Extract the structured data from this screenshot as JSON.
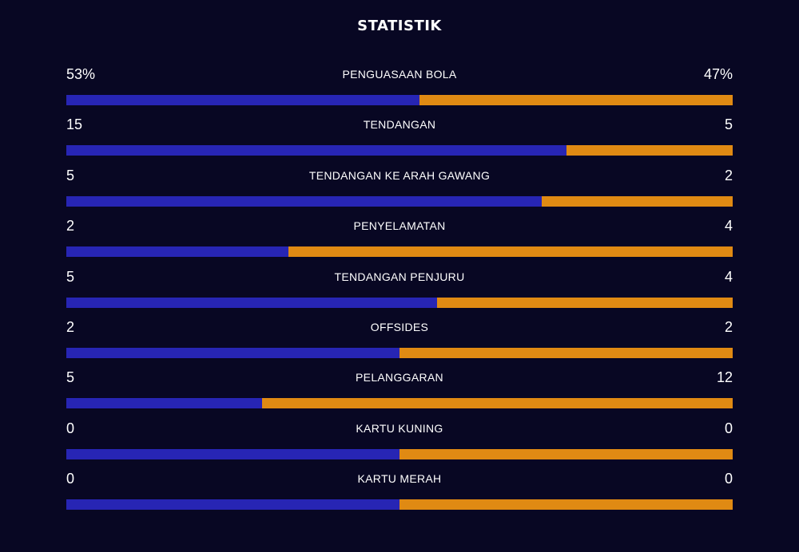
{
  "title": "STATISTIK",
  "colors": {
    "background": "#080723",
    "home": "#2725b4",
    "away": "#e08a13"
  },
  "stats": [
    {
      "label": "PENGUASAAN BOLA",
      "home": "53%",
      "away": "47%",
      "home_share": 0.53
    },
    {
      "label": "TENDANGAN",
      "home": "15",
      "away": "5",
      "home_share": 0.75
    },
    {
      "label": "TENDANGAN KE ARAH GAWANG",
      "home": "5",
      "away": "2",
      "home_share": 0.714
    },
    {
      "label": "PENYELAMATAN",
      "home": "2",
      "away": "4",
      "home_share": 0.333
    },
    {
      "label": "TENDANGAN PENJURU",
      "home": "5",
      "away": "4",
      "home_share": 0.556
    },
    {
      "label": "OFFSIDES",
      "home": "2",
      "away": "2",
      "home_share": 0.5
    },
    {
      "label": "PELANGGARAN",
      "home": "5",
      "away": "12",
      "home_share": 0.294
    },
    {
      "label": "KARTU KUNING",
      "home": "0",
      "away": "0",
      "home_share": 0.5
    },
    {
      "label": "KARTU MERAH",
      "home": "0",
      "away": "0",
      "home_share": 0.5
    }
  ]
}
